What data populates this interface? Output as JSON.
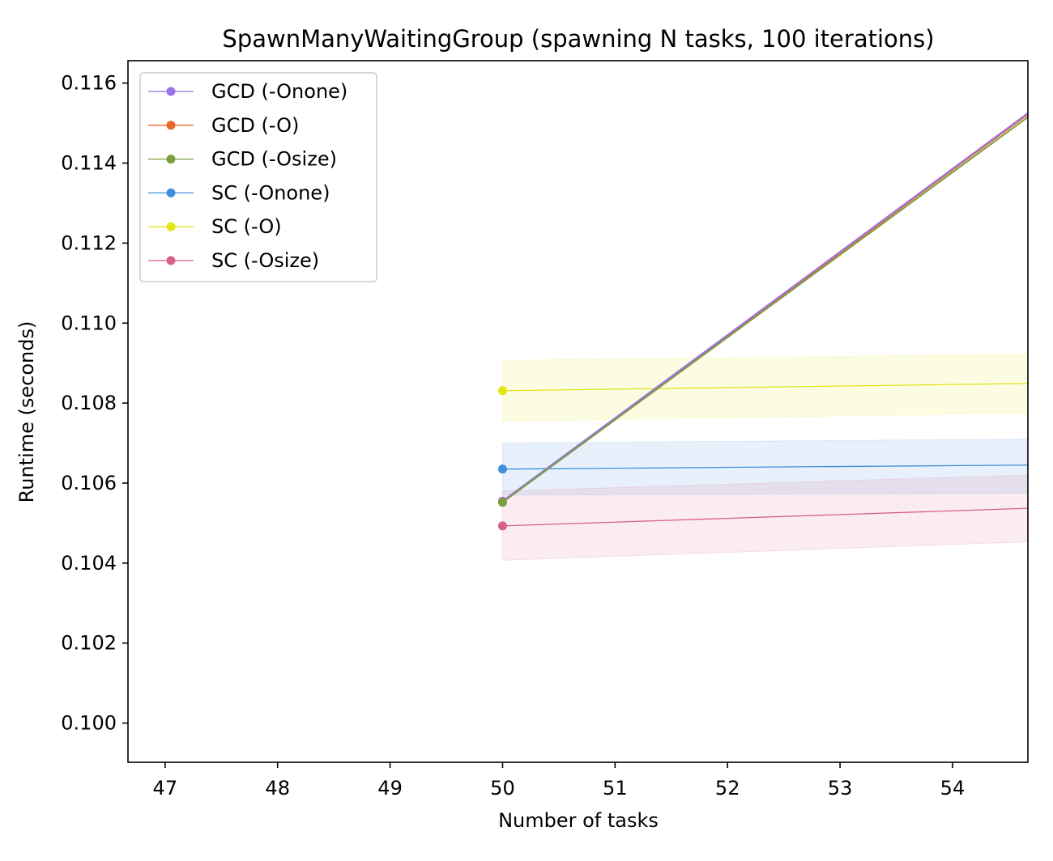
{
  "chart_data": {
    "type": "line",
    "title": "SpawnManyWaitingGroup (spawning N tasks, 100 iterations)",
    "xlabel": "Number of tasks",
    "ylabel": "Runtime (seconds)",
    "xlim": [
      46.67,
      54.67
    ],
    "ylim": [
      0.09902,
      0.11656
    ],
    "x_ticks": [
      47,
      48,
      49,
      50,
      51,
      52,
      53,
      54
    ],
    "x_tick_labels": [
      "47",
      "48",
      "49",
      "50",
      "51",
      "52",
      "53",
      "54"
    ],
    "y_ticks": [
      0.1,
      0.102,
      0.104,
      0.106,
      0.108,
      0.11,
      0.112,
      0.114,
      0.116
    ],
    "y_tick_labels": [
      "0.100",
      "0.102",
      "0.104",
      "0.106",
      "0.108",
      "0.110",
      "0.112",
      "0.114",
      "0.116"
    ],
    "grid": false,
    "legend_position": "top-left",
    "series": [
      {
        "name": "GCD (-Onone)",
        "color": "#9b72e8",
        "x": [
          50,
          54.67
        ],
        "y": [
          0.10555,
          0.11525
        ],
        "band_lower": null,
        "band_upper": null
      },
      {
        "name": "GCD (-O)",
        "color": "#e8692a",
        "x": [
          50,
          54.67
        ],
        "y": [
          0.10553,
          0.11522
        ],
        "band_lower": null,
        "band_upper": null
      },
      {
        "name": "GCD (-Osize)",
        "color": "#7b9e3e",
        "x": [
          50,
          54.67
        ],
        "y": [
          0.10552,
          0.11515
        ],
        "band_lower": null,
        "band_upper": null
      },
      {
        "name": "SC (-Onone)",
        "color": "#3f8fdd",
        "x": [
          50,
          54.67
        ],
        "y": [
          0.10635,
          0.10645
        ],
        "band_lower": [
          0.1057,
          0.10575
        ],
        "band_upper": [
          0.107,
          0.1071
        ]
      },
      {
        "name": "SC (-O)",
        "color": "#e3e31a",
        "x": [
          50,
          54.67
        ],
        "y": [
          0.10831,
          0.10849
        ],
        "band_lower": [
          0.10755,
          0.10775
        ],
        "band_upper": [
          0.10907,
          0.10922
        ]
      },
      {
        "name": "SC (-Osize)",
        "color": "#d95f8c",
        "x": [
          50,
          54.67
        ],
        "y": [
          0.10493,
          0.10537
        ],
        "band_lower": [
          0.10407,
          0.10453
        ],
        "band_upper": [
          0.1058,
          0.1062
        ]
      }
    ]
  }
}
